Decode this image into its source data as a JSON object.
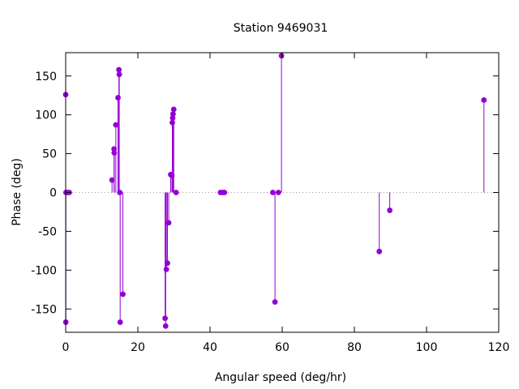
{
  "chart_data": {
    "type": "scatter",
    "style": "impulses-with-points",
    "title": "Station 9469031",
    "xlabel": "Angular speed (deg/hr)",
    "ylabel": "Phase (deg)",
    "xlim": [
      0,
      120
    ],
    "ylim": [
      -180,
      180
    ],
    "xticks": [
      0,
      20,
      40,
      60,
      80,
      100,
      120
    ],
    "yticks": [
      -150,
      -100,
      -50,
      0,
      50,
      100,
      150
    ],
    "xtick_labels": [
      "0",
      "20",
      "40",
      "60",
      "80",
      "100",
      "120"
    ],
    "ytick_labels": [
      "-150",
      "-100",
      "-50",
      "0",
      "50",
      "100",
      "150"
    ],
    "zero_line": "dotted",
    "grid": false,
    "color": "#9400d3",
    "points": [
      {
        "x": 0.0,
        "y": 126
      },
      {
        "x": 0.04,
        "y": -167
      },
      {
        "x": 0.08,
        "y": 0
      },
      {
        "x": 0.5,
        "y": 0
      },
      {
        "x": 1.0,
        "y": 0
      },
      {
        "x": 12.85,
        "y": 16
      },
      {
        "x": 13.4,
        "y": 56
      },
      {
        "x": 13.45,
        "y": 51
      },
      {
        "x": 13.9,
        "y": 87
      },
      {
        "x": 14.5,
        "y": 122
      },
      {
        "x": 14.75,
        "y": 158
      },
      {
        "x": 14.85,
        "y": 152
      },
      {
        "x": 15.0,
        "y": 0
      },
      {
        "x": 15.1,
        "y": -167
      },
      {
        "x": 15.85,
        "y": -131
      },
      {
        "x": 27.55,
        "y": -162
      },
      {
        "x": 27.7,
        "y": -172
      },
      {
        "x": 27.9,
        "y": -99
      },
      {
        "x": 28.2,
        "y": -91
      },
      {
        "x": 28.55,
        "y": -39
      },
      {
        "x": 29.1,
        "y": 23
      },
      {
        "x": 29.45,
        "y": 22
      },
      {
        "x": 29.55,
        "y": 90
      },
      {
        "x": 29.65,
        "y": 96
      },
      {
        "x": 29.75,
        "y": 101
      },
      {
        "x": 29.95,
        "y": 107
      },
      {
        "x": 30.6,
        "y": 0
      },
      {
        "x": 42.9,
        "y": 0
      },
      {
        "x": 43.5,
        "y": 0
      },
      {
        "x": 44.0,
        "y": 0
      },
      {
        "x": 57.4,
        "y": 0
      },
      {
        "x": 58.0,
        "y": -141
      },
      {
        "x": 58.95,
        "y": 0
      },
      {
        "x": 59.8,
        "y": 176
      },
      {
        "x": 86.9,
        "y": -76
      },
      {
        "x": 89.8,
        "y": -23
      },
      {
        "x": 115.9,
        "y": 119
      }
    ]
  }
}
